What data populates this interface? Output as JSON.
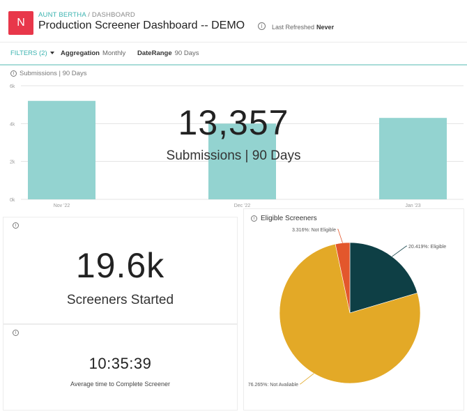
{
  "header": {
    "logo_letter": "N",
    "breadcrumb_org": "AUNT BERTHA",
    "breadcrumb_sep": " / ",
    "breadcrumb_page": "DASHBOARD",
    "title": "Production Screener Dashboard -- DEMO",
    "last_refreshed_label": "Last Refreshed",
    "last_refreshed_value": "Never"
  },
  "filters": {
    "label": "FILTERS (2)",
    "aggregation_label": "Aggregation",
    "aggregation_value": "Monthly",
    "daterange_label": "DateRange",
    "daterange_value": "90 Days"
  },
  "submissions": {
    "title": "Submissions | 90 Days",
    "big_value": "13,357",
    "big_label": "Submissions | 90 Days"
  },
  "screeners_started": {
    "value": "19.6k",
    "label": "Screeners Started"
  },
  "avg_time": {
    "value": "10:35:39",
    "label": "Average time to Complete Screener"
  },
  "eligible": {
    "title": "Eligible Screeners"
  },
  "colors": {
    "bar": "#93d3d0",
    "eligible": "#0e3f45",
    "not_eligible": "#e3572c",
    "not_available": "#e3a927",
    "accent": "#3bb3b0",
    "brand": "#e8374a"
  },
  "chart_data": [
    {
      "type": "bar",
      "categories": [
        "Nov '22",
        "Dec '22",
        "Jan '23"
      ],
      "values": [
        5200,
        4000,
        4300
      ],
      "y_ticks": [
        "0k",
        "2k",
        "4k",
        "6k"
      ],
      "ylim": [
        0,
        6000
      ],
      "grid": true
    },
    {
      "type": "pie",
      "title": "Eligible Screeners",
      "slices": [
        {
          "label": "20.419%: Eligible",
          "value": 20.419,
          "color": "#0e3f45"
        },
        {
          "label": "76.265%: Not Avaliable",
          "value": 76.265,
          "color": "#e3a927"
        },
        {
          "label": "3.316%: Not Eligible",
          "value": 3.316,
          "color": "#e3572c"
        }
      ]
    }
  ]
}
